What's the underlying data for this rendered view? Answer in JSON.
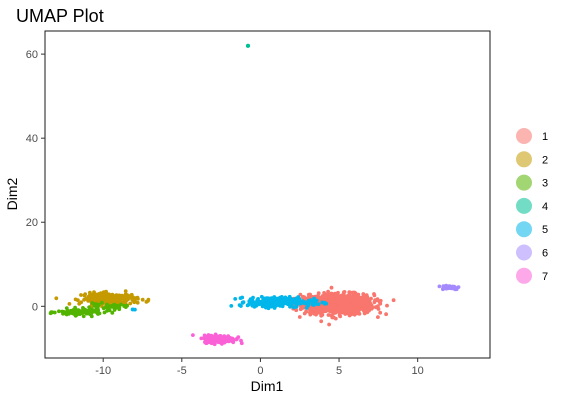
{
  "chart_data": {
    "type": "scatter",
    "title": "UMAP Plot",
    "xlabel": "Dim1",
    "ylabel": "Dim2",
    "xlim": [
      -13.7,
      14.6
    ],
    "ylim": [
      -12.3,
      65.5
    ],
    "x_ticks": [
      -10,
      -5,
      0,
      5,
      10
    ],
    "y_ticks": [
      0,
      20,
      40,
      60
    ],
    "x_tick_labels": [
      "-10",
      "-5",
      "0",
      "5",
      "10"
    ],
    "y_tick_labels": [
      "0",
      "20",
      "40",
      "60"
    ],
    "grid": false,
    "legend": {
      "position": "right"
    },
    "series": [
      {
        "name": "1",
        "color": "#F8766D",
        "clusters": [
          {
            "cx": 5.0,
            "cy": 0.5,
            "sx": 1.1,
            "sy": 1.2,
            "n": 900
          },
          {
            "cx": 3.5,
            "cy": 1.0,
            "sx": 0.6,
            "sy": 0.8,
            "n": 120
          }
        ]
      },
      {
        "name": "2",
        "color": "#C49A00",
        "clusters": [
          {
            "cx": -9.6,
            "cy": 1.8,
            "sx": 0.9,
            "sy": 0.7,
            "n": 220
          }
        ]
      },
      {
        "name": "3",
        "color": "#53B400",
        "clusters": [
          {
            "cx": -11.5,
            "cy": -1.4,
            "sx": 0.7,
            "sy": 0.4,
            "n": 120
          },
          {
            "cx": -9.8,
            "cy": -0.2,
            "sx": 0.6,
            "sy": 0.4,
            "n": 40
          }
        ]
      },
      {
        "name": "4",
        "color": "#00C094",
        "clusters": [
          {
            "cx": -0.8,
            "cy": 62.0,
            "sx": 0.04,
            "sy": 0.1,
            "n": 3
          }
        ]
      },
      {
        "name": "5",
        "color": "#00B6EB",
        "clusters": [
          {
            "cx": 0.8,
            "cy": 1.0,
            "sx": 0.8,
            "sy": 0.6,
            "n": 260
          },
          {
            "cx": 3.2,
            "cy": 0.8,
            "sx": 0.5,
            "sy": 0.5,
            "n": 30
          },
          {
            "cx": -8.0,
            "cy": -0.8,
            "sx": 0.1,
            "sy": 0.1,
            "n": 3
          }
        ]
      },
      {
        "name": "6",
        "color": "#A58AFF",
        "clusters": [
          {
            "cx": 12.0,
            "cy": 4.5,
            "sx": 0.35,
            "sy": 0.25,
            "n": 50
          }
        ]
      },
      {
        "name": "7",
        "color": "#FB61D7",
        "clusters": [
          {
            "cx": -2.6,
            "cy": -7.8,
            "sx": 0.5,
            "sy": 0.45,
            "n": 180
          }
        ]
      }
    ]
  }
}
